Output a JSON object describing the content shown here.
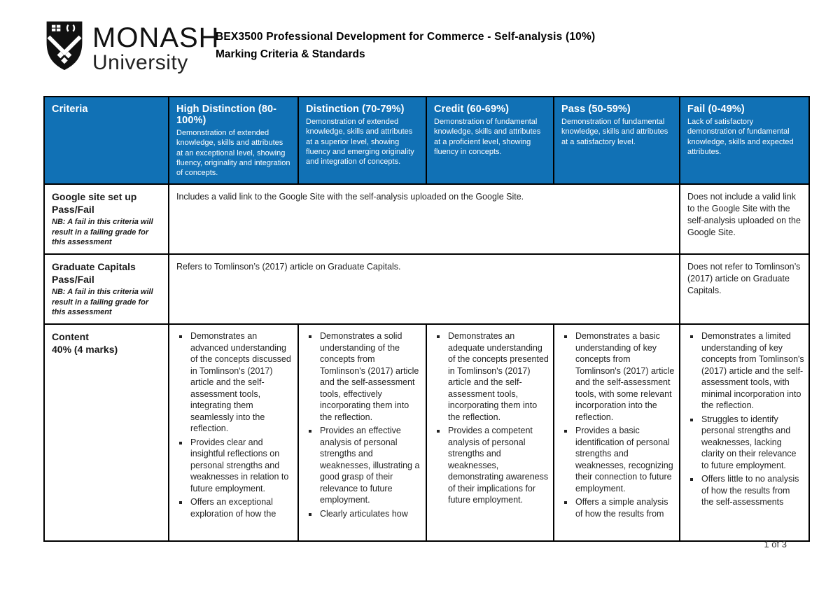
{
  "header": {
    "title": "BEX3500 Professional Development for Commerce - Self-analysis (10%)",
    "subtitle": "Marking Criteria & Standards"
  },
  "logo": {
    "wordmark": "MONASH",
    "wordmark_sub": "University",
    "shield_icon": "monash-shield-icon"
  },
  "footer": {
    "page_number": "1 of 3"
  },
  "colors": {
    "header_blue": "#1171b5",
    "header_text": "#ffffff",
    "border": "#000000"
  },
  "table": {
    "columns": [
      {
        "title": "Criteria",
        "desc": ""
      },
      {
        "title": "High Distinction (80-100%)",
        "desc": "Demonstration of extended knowledge, skills and attributes at an exceptional level, showing fluency, originality and integration of concepts."
      },
      {
        "title": "Distinction (70-79%)",
        "desc": "Demonstration of extended knowledge, skills and attributes at a superior level, showing fluency and emerging originality and integration of concepts."
      },
      {
        "title": "Credit (60-69%)",
        "desc": "Demonstration of fundamental knowledge, skills and attributes at a proficient level, showing fluency in concepts."
      },
      {
        "title": "Pass (50-59%)",
        "desc": "Demonstration of fundamental knowledge, skills and attributes at a satisfactory level."
      },
      {
        "title": "Fail (0-49%)",
        "desc": "Lack of satisfactory demonstration of fundamental knowledge, skills and expected attributes."
      }
    ],
    "rows": {
      "google_site": {
        "title": "Google site set up",
        "grade_type": "Pass/Fail",
        "note": "NB: A fail in this criteria will result in a failing grade for this assessment",
        "all_pass_text": "Includes a valid link to the Google Site with the self-analysis uploaded on the Google Site.",
        "fail_text": "Does not include a valid link to the Google Site with the self-analysis uploaded on the Google Site."
      },
      "graduate_capitals": {
        "title": "Graduate Capitals",
        "grade_type": "Pass/Fail",
        "note": "NB: A fail in this criteria will result in a failing grade for this assessment",
        "all_pass_text": "Refers to Tomlinson’s (2017) article on Graduate Capitals.",
        "fail_text": "Does not refer to Tomlinson’s (2017) article on Graduate Capitals."
      },
      "content": {
        "title": "Content",
        "weight": "40% (4 marks)",
        "high_distinction": [
          "Demonstrates an advanced understanding of the concepts discussed in Tomlinson's (2017) article and the self-assessment tools, integrating them seamlessly into the reflection.",
          "Provides clear and insightful reflections on personal strengths and weaknesses in relation to future employment.",
          "Offers an exceptional exploration of how the"
        ],
        "distinction": [
          "Demonstrates a solid understanding of the concepts from Tomlinson's (2017) article and the self-assessment tools, effectively incorporating them into the reflection.",
          "Provides an effective analysis of personal strengths and weaknesses, illustrating a good grasp of their relevance to future employment.",
          "Clearly articulates how"
        ],
        "credit": [
          "Demonstrates an adequate understanding of the concepts presented in Tomlinson's (2017) article and the self-assessment tools, incorporating them into the reflection.",
          "Provides a competent analysis of personal strengths and weaknesses, demonstrating awareness of their implications for future employment."
        ],
        "pass": [
          "Demonstrates a basic understanding of key concepts from Tomlinson's (2017) article and the self-assessment tools, with some relevant incorporation into the reflection.",
          "Provides a basic identification of personal strengths and weaknesses, recognizing their connection to future employment.",
          "Offers a simple analysis of how the results from"
        ],
        "fail": [
          "Demonstrates a limited understanding of key concepts from Tomlinson's (2017) article and the self-assessment tools, with minimal incorporation into the reflection.",
          "Struggles to identify personal strengths and weaknesses, lacking clarity on their relevance to future employment.",
          "Offers little to no analysis of how the results from the self-assessments"
        ]
      }
    }
  }
}
